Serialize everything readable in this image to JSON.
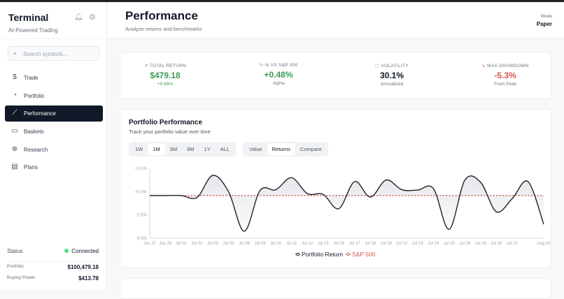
{
  "sidebar": {
    "brand": "Terminal",
    "tagline": "AI-Powered Trading",
    "search_placeholder": "Search symbols...",
    "items": [
      {
        "label": "Trade",
        "icon": "dollar-icon"
      },
      {
        "label": "Portfolio",
        "icon": "pie-chart-icon"
      },
      {
        "label": "Performance",
        "icon": "line-chart-icon",
        "active": true
      },
      {
        "label": "Baskets",
        "icon": "card-icon"
      },
      {
        "label": "Research",
        "icon": "globe-icon"
      },
      {
        "label": "Plans",
        "icon": "clipboard-icon"
      }
    ],
    "status_label": "Status",
    "status_value": "Connected",
    "portfolio_label": "Portfolio",
    "portfolio_value": "$100,479.18",
    "buying_power_label": "Buying Power",
    "buying_power_value": "$413.78"
  },
  "header": {
    "title": "Performance",
    "subtitle": "Analyze returns and benchmarks",
    "mode_label": "Mode",
    "mode_value": "Paper"
  },
  "stats": [
    {
      "label": "TOTAL RETURN",
      "value": "$479.18",
      "sub": "+0.48%",
      "icon": "trend-up-icon",
      "color": "#3f9b55"
    },
    {
      "label": "% VS S&P 500",
      "value": "+0.48%",
      "sub": "Alpha",
      "icon": "percent-icon",
      "color": "#3f9b55"
    },
    {
      "label": "VOLATILITY",
      "value": "30.1%",
      "sub": "Annualized",
      "icon": "calendar-icon",
      "color": "#111827"
    },
    {
      "label": "MAX DRAWDOWN",
      "value": "-5.3%",
      "sub": "From Peak",
      "icon": "trend-down-icon",
      "color": "#d9534f"
    }
  ],
  "chart_card": {
    "title": "Portfolio Performance",
    "subtitle": "Track your portfolio value over time",
    "ranges": [
      "1W",
      "1M",
      "3M",
      "6M",
      "1Y",
      "ALL"
    ],
    "active_range": "1M",
    "views": [
      "Value",
      "Returns",
      "Compare"
    ],
    "active_view": "Returns"
  },
  "chart_data": {
    "type": "line",
    "ylim": [
      -5.5,
      3.5
    ],
    "yticks": [
      "+3.5%",
      "+0.5%",
      "-2.5%",
      "-5.5%"
    ],
    "ytick_values": [
      3.5,
      0.5,
      -2.5,
      -5.5
    ],
    "x": [
      "Jun 27",
      "Jun 28",
      "Jul 01",
      "Jul 02",
      "Jul 03",
      "Jul 03",
      "Jul 08",
      "Jul 09",
      "Jul 10",
      "Jul 11",
      "Jul 12",
      "Jul 15",
      "Jul 16",
      "Jul 17",
      "Jul 18",
      "Jul 19",
      "Jul 22",
      "Jul 23",
      "Jul 24",
      "Jul 25",
      "Jul 26",
      "Jul 29",
      "Jul 30",
      "Jul 31",
      "",
      "Aug 02"
    ],
    "series": [
      {
        "name": "Portfolio Return",
        "color": "#1f2125",
        "values": [
          0,
          0,
          0,
          -0.25,
          2.6,
          0.5,
          -4.6,
          0.65,
          0.75,
          2.3,
          0.25,
          0.15,
          -1.7,
          1.8,
          -0.2,
          2.0,
          0.75,
          0.7,
          0.9,
          -4.35,
          2.0,
          1.7,
          -2.1,
          -0.4,
          1.8,
          -3.7
        ]
      },
      {
        "name": "S&P 500",
        "color": "#d9534f",
        "values": [
          0,
          0,
          0,
          0,
          0,
          0,
          0,
          0,
          0,
          0,
          0,
          0,
          0,
          0,
          0,
          0,
          0,
          0,
          0,
          0,
          0,
          0,
          0,
          0,
          0,
          0
        ]
      }
    ],
    "grid": false,
    "legend": "bottom"
  }
}
